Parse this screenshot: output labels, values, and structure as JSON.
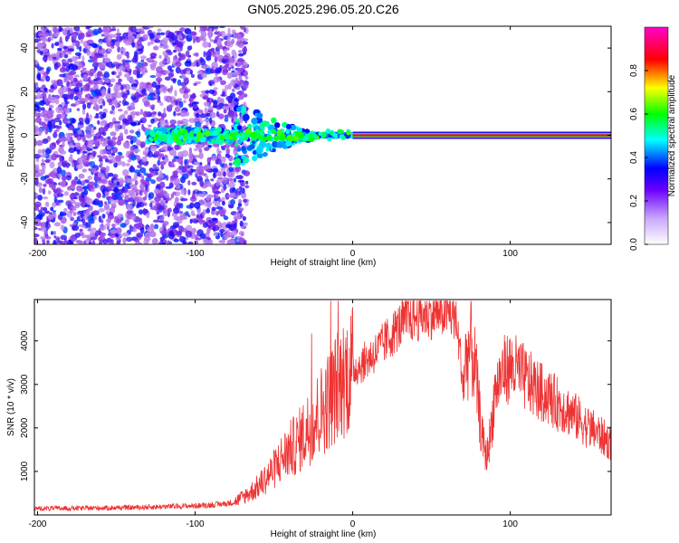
{
  "figure": {
    "title": "GN05.2025.296.05.20.C26"
  },
  "chart_data": [
    {
      "type": "heatmap",
      "xlabel": "Height of straight line (km)",
      "ylabel": "Frequency (Hz)",
      "xlim": [
        -202,
        164
      ],
      "ylim": [
        -50,
        50
      ],
      "xticks": [
        -200,
        -100,
        0,
        100
      ],
      "yticks": [
        -40,
        -20,
        0,
        20,
        40
      ],
      "colorbar": {
        "label": "Normalized spectral amplitude",
        "range": [
          0.0,
          1.0
        ],
        "ticks": [
          "0.0",
          "0.2",
          "0.4",
          "0.6",
          "0.8"
        ],
        "colormap": [
          "#ffffff",
          "#8a2be2",
          "#0000ff",
          "#00ffff",
          "#00ff00",
          "#ffff00",
          "#ff0000",
          "#ff00ff"
        ]
      },
      "features": {
        "noise_region_x": [
          -202,
          -75
        ],
        "signal_line_freq": 0,
        "signal_line_x": [
          0,
          164
        ],
        "signal_line_amplitude": 0.9,
        "transition_x": [
          -130,
          0
        ]
      }
    },
    {
      "type": "line",
      "xlabel": "Height of straight line (km)",
      "ylabel": "SNR (10 * v/v)",
      "xlim": [
        -202,
        164
      ],
      "ylim": [
        0,
        4950
      ],
      "xticks": [
        -200,
        -100,
        0,
        100
      ],
      "yticks": [
        1000,
        2000,
        3000,
        4000
      ],
      "series": [
        {
          "color": "#ee3333",
          "x": [
            -202,
            -180,
            -160,
            -140,
            -120,
            -100,
            -90,
            -80,
            -75,
            -70,
            -65,
            -60,
            -55,
            -50,
            -45,
            -40,
            -35,
            -30,
            -25,
            -20,
            -15,
            -10,
            -5,
            0,
            5,
            10,
            15,
            20,
            25,
            30,
            35,
            40,
            45,
            50,
            55,
            60,
            65,
            68,
            70,
            72,
            75,
            78,
            80,
            82,
            85,
            88,
            90,
            95,
            100,
            105,
            110,
            115,
            120,
            125,
            130,
            135,
            140,
            145,
            150,
            155,
            160,
            164
          ],
          "y": [
            150,
            150,
            160,
            170,
            190,
            210,
            230,
            260,
            300,
            400,
            520,
            650,
            850,
            1050,
            1300,
            1500,
            1650,
            1900,
            2150,
            2400,
            2650,
            2950,
            3200,
            3350,
            3450,
            3600,
            3750,
            3950,
            4150,
            4350,
            4500,
            4550,
            4600,
            4620,
            4650,
            4650,
            4550,
            3800,
            3000,
            3600,
            3900,
            3300,
            2500,
            1800,
            1300,
            2000,
            2800,
            3300,
            3400,
            3300,
            3100,
            2950,
            2800,
            2700,
            2550,
            2450,
            2300,
            2150,
            2000,
            1900,
            1750,
            1650
          ]
        }
      ]
    }
  ]
}
